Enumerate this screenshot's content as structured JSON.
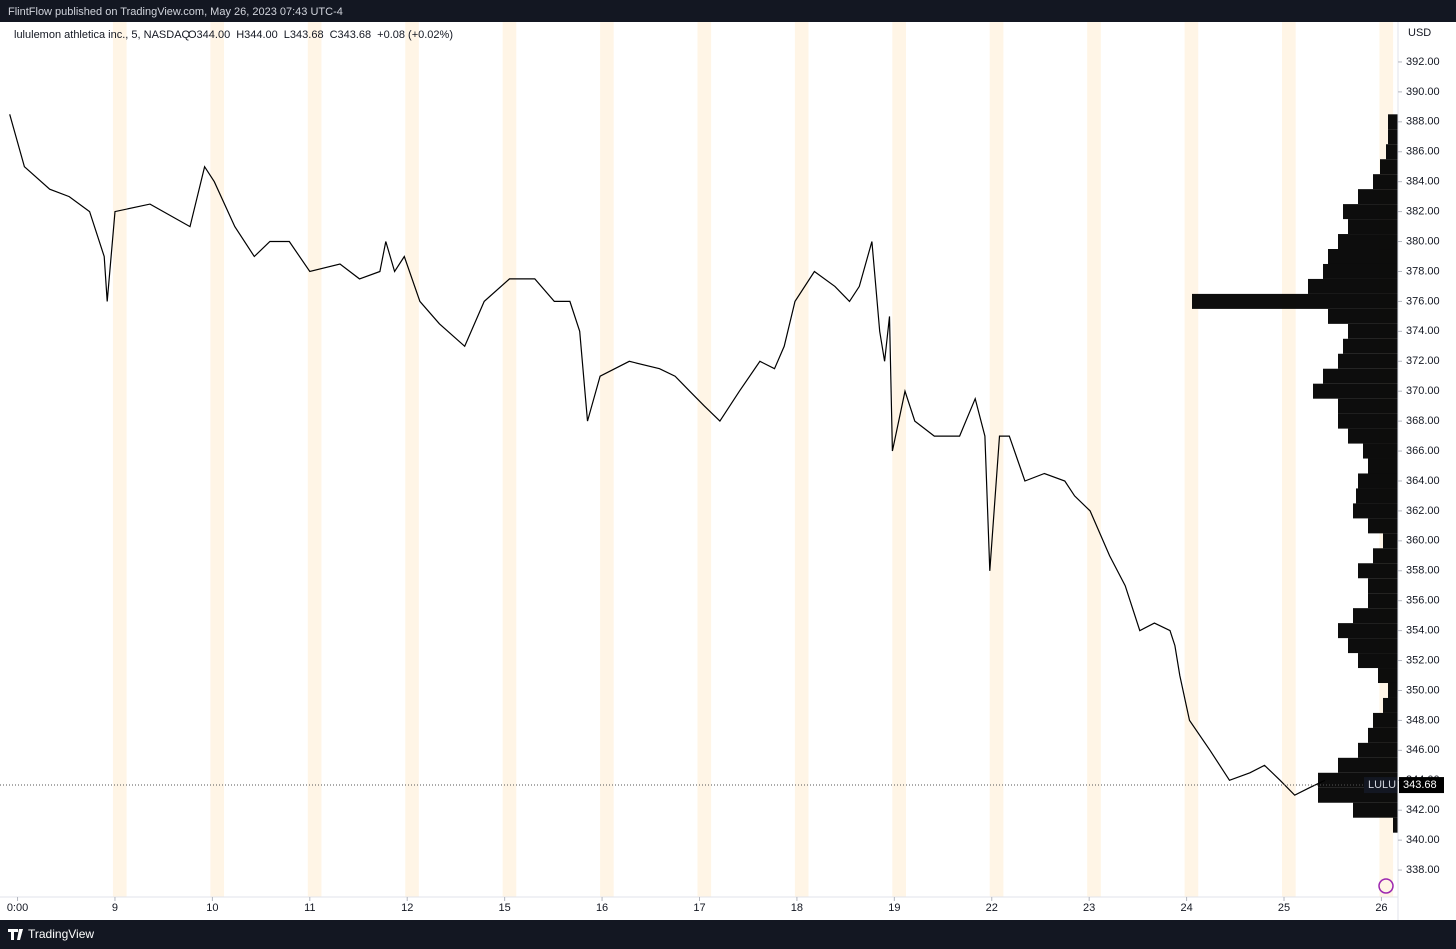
{
  "header": {
    "publisher": "FlintFlow published on TradingView.com, May 26, 2023 07:43 UTC-4"
  },
  "footer": {
    "brand": "TradingView"
  },
  "chart_data": {
    "type": "line",
    "symbol": "lululemon athletica inc., 5, NASDAQ",
    "ohlc": [
      "O344.00",
      "H344.00",
      "L343.68",
      "C343.68",
      "+0.08 (+0.02%)"
    ],
    "currency": "USD",
    "last_price": 343.68,
    "last_price_color": "#000000",
    "x": [
      -0.08,
      0.07,
      0.33,
      0.53,
      0.74,
      0.89,
      0.92,
      1.0,
      1.36,
      1.77,
      1.92,
      2.02,
      2.23,
      2.43,
      2.59,
      2.79,
      3.0,
      3.31,
      3.51,
      3.72,
      3.78,
      3.87,
      3.97,
      4.13,
      4.33,
      4.59,
      4.79,
      5.05,
      5.31,
      5.51,
      5.67,
      5.77,
      5.85,
      5.98,
      6.28,
      6.59,
      6.75,
      6.9,
      7.05,
      7.21,
      7.41,
      7.62,
      7.77,
      7.87,
      7.98,
      8.18,
      8.39,
      8.54,
      8.64,
      8.77,
      8.85,
      8.9,
      8.95,
      8.98,
      9.11,
      9.21,
      9.41,
      9.67,
      9.83,
      9.93,
      9.98,
      10.08,
      10.18,
      10.34,
      10.54,
      10.75,
      10.85,
      11.01,
      11.21,
      11.37,
      11.52,
      11.67,
      11.83,
      11.88,
      11.93,
      12.03,
      12.24,
      12.44,
      12.65,
      12.8,
      12.96,
      13.11,
      13.26,
      13.42
    ],
    "series": [
      {
        "name": "LULU",
        "color": "#000000",
        "values": [
          388.5,
          385,
          383.5,
          383,
          382,
          379,
          376,
          382,
          382.5,
          381,
          385,
          384,
          381,
          379,
          380,
          380,
          378,
          378.5,
          377.5,
          378,
          380,
          378,
          379,
          376,
          374.5,
          373,
          376,
          377.5,
          377.5,
          376,
          376,
          374,
          368,
          371,
          372,
          371.5,
          371,
          370,
          369,
          368,
          370,
          372,
          371.5,
          373,
          376,
          378,
          377,
          376,
          377,
          380,
          374,
          372,
          375,
          366,
          370,
          368,
          367,
          367,
          369.5,
          367,
          358,
          367,
          367,
          364,
          364.5,
          364,
          363,
          362,
          359,
          357,
          354,
          354.5,
          354,
          353,
          351,
          348,
          346,
          344,
          344.5,
          345,
          344,
          343,
          343.5,
          344
        ]
      }
    ],
    "xlim": [
      -0.18,
      14.17
    ],
    "xticks": [
      {
        "value": 0,
        "label": "0:00"
      },
      {
        "value": 1,
        "label": "9"
      },
      {
        "value": 2,
        "label": "10"
      },
      {
        "value": 3,
        "label": "11"
      },
      {
        "value": 4,
        "label": "12"
      },
      {
        "value": 5,
        "label": "15"
      },
      {
        "value": 6,
        "label": "16"
      },
      {
        "value": 7,
        "label": "17"
      },
      {
        "value": 8,
        "label": "18"
      },
      {
        "value": 9,
        "label": "19"
      },
      {
        "value": 10,
        "label": "22"
      },
      {
        "value": 11,
        "label": "23"
      },
      {
        "value": 12,
        "label": "24"
      },
      {
        "value": 13,
        "label": "25"
      },
      {
        "value": 14,
        "label": "26"
      }
    ],
    "ylim": [
      336.2,
      394.67
    ],
    "yticks": [
      {
        "value": 338,
        "label": "338.00"
      },
      {
        "value": 340,
        "label": "340.00"
      },
      {
        "value": 342,
        "label": "342.00"
      },
      {
        "value": 344,
        "label": "344.00"
      },
      {
        "value": 346,
        "label": "346.00"
      },
      {
        "value": 348,
        "label": "348.00"
      },
      {
        "value": 350,
        "label": "350.00"
      },
      {
        "value": 352,
        "label": "352.00"
      },
      {
        "value": 354,
        "label": "354.00"
      },
      {
        "value": 356,
        "label": "356.00"
      },
      {
        "value": 358,
        "label": "358.00"
      },
      {
        "value": 360,
        "label": "360.00"
      },
      {
        "value": 362,
        "label": "362.00"
      },
      {
        "value": 364,
        "label": "364.00"
      },
      {
        "value": 366,
        "label": "366.00"
      },
      {
        "value": 368,
        "label": "368.00"
      },
      {
        "value": 370,
        "label": "370.00"
      },
      {
        "value": 372,
        "label": "372.00"
      },
      {
        "value": 374,
        "label": "374.00"
      },
      {
        "value": 376,
        "label": "376.00"
      },
      {
        "value": 378,
        "label": "378.00"
      },
      {
        "value": 380,
        "label": "380.00"
      },
      {
        "value": 382,
        "label": "382.00"
      },
      {
        "value": 384,
        "label": "384.00"
      },
      {
        "value": 386,
        "label": "386.00"
      },
      {
        "value": 388,
        "label": "388.00"
      },
      {
        "value": 390,
        "label": "390.00"
      },
      {
        "value": 392,
        "label": "392.00"
      }
    ],
    "volume_profile": {
      "color": "#000000",
      "volume_lim": [
        0,
        210
      ],
      "prices": [
        388,
        387,
        386,
        385,
        384,
        383,
        382,
        381,
        380,
        379,
        378,
        377,
        376,
        375,
        374,
        373,
        372,
        371,
        370,
        369,
        368,
        367,
        366,
        365,
        364,
        363,
        362,
        361,
        360,
        359,
        358,
        357,
        356,
        355,
        354,
        353,
        352,
        351,
        350,
        349,
        348,
        347,
        346,
        345,
        344,
        343,
        342,
        341
      ],
      "volume": [
        10,
        10,
        12,
        18,
        25,
        40,
        55,
        50,
        60,
        70,
        75,
        90,
        206,
        70,
        50,
        55,
        60,
        75,
        85,
        60,
        60,
        50,
        35,
        30,
        40,
        42,
        45,
        30,
        15,
        25,
        40,
        30,
        30,
        45,
        60,
        50,
        40,
        20,
        10,
        15,
        25,
        30,
        40,
        60,
        80,
        80,
        45,
        5
      ]
    }
  }
}
